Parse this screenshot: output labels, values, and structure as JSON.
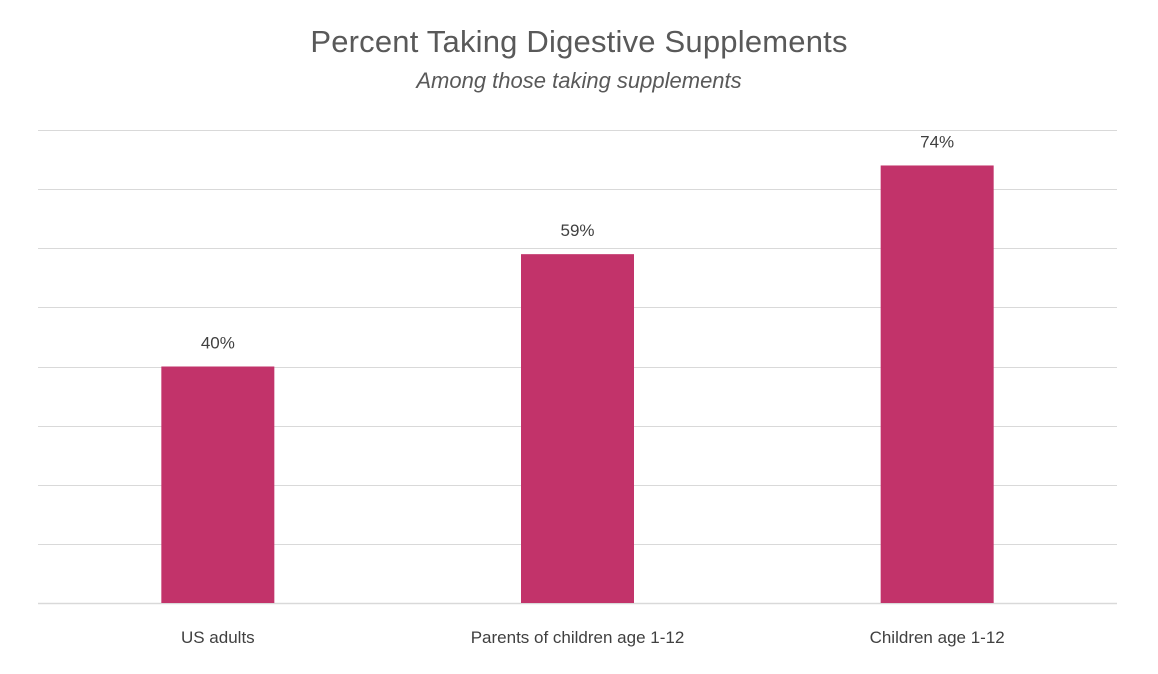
{
  "chart_data": {
    "type": "bar",
    "title": "Percent Taking Digestive Supplements",
    "subtitle": "Among those taking supplements",
    "categories": [
      "US adults",
      "Parents of children age 1-12",
      "Children age 1-12"
    ],
    "values": [
      40,
      59,
      74
    ],
    "value_labels": [
      "40%",
      "59%",
      "74%"
    ],
    "xlabel": "",
    "ylabel": "",
    "ylim": [
      0,
      80
    ],
    "gridlines": true,
    "legend": "none",
    "colors": {
      "bar": "#c2336a",
      "grid": "#d9d9d9",
      "text": "#595959"
    }
  }
}
